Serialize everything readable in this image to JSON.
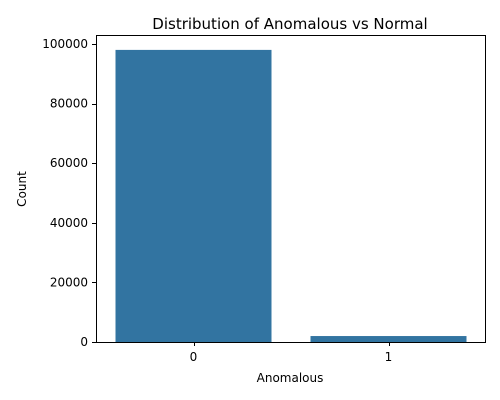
{
  "chart_data": {
    "type": "bar",
    "title": "Distribution of Anomalous vs Normal",
    "xlabel": "Anomalous",
    "ylabel": "Count",
    "categories": [
      "0",
      "1"
    ],
    "values": [
      98000,
      2000
    ],
    "ylim": [
      0,
      103000
    ],
    "yticks": [
      0,
      20000,
      40000,
      60000,
      80000,
      100000
    ],
    "grid": false,
    "legend": "none",
    "bar_color": "#3274a1"
  }
}
